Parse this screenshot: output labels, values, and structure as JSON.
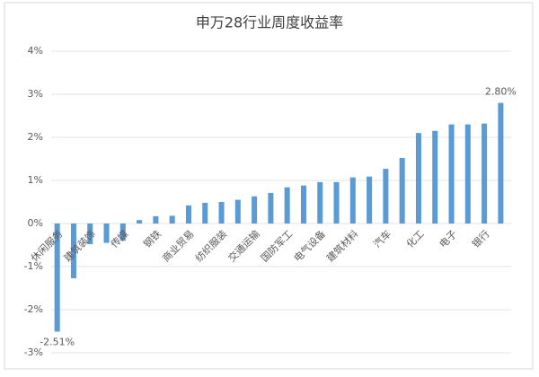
{
  "chart_data": {
    "type": "bar",
    "title": "申万28行业周度收益率",
    "categories": [
      "休闲服务",
      null,
      "建筑装饰",
      null,
      "传媒",
      null,
      "钢铁",
      null,
      "商业贸易",
      null,
      "纺织服装",
      null,
      "交通运输",
      null,
      "国防军工",
      null,
      "电气设备",
      null,
      "建筑材料",
      null,
      "汽车",
      null,
      "化工",
      null,
      "电子",
      null,
      "银行",
      null
    ],
    "values": [
      -2.51,
      -1.27,
      -0.48,
      -0.45,
      -0.4,
      0.08,
      0.17,
      0.18,
      0.42,
      0.48,
      0.5,
      0.55,
      0.63,
      0.71,
      0.84,
      0.88,
      0.96,
      0.96,
      1.07,
      1.09,
      1.27,
      1.52,
      2.1,
      2.15,
      2.3,
      2.3,
      2.32,
      2.8
    ],
    "value_labels": [
      "-2.51%",
      null,
      null,
      null,
      null,
      null,
      null,
      null,
      null,
      null,
      null,
      null,
      null,
      null,
      null,
      null,
      null,
      null,
      null,
      null,
      null,
      null,
      null,
      null,
      null,
      null,
      null,
      "2.80%"
    ],
    "color": "#5b9bd5",
    "ylim": [
      -3,
      4
    ],
    "yticks": [
      {
        "value": -3,
        "label": "-3%"
      },
      {
        "value": -2,
        "label": "-2%"
      },
      {
        "value": -1,
        "label": "-1%"
      },
      {
        "value": 0,
        "label": "0%"
      },
      {
        "value": 1,
        "label": "1%"
      },
      {
        "value": 2,
        "label": "2%"
      },
      {
        "value": 3,
        "label": "3%"
      },
      {
        "value": 4,
        "label": "4%"
      }
    ],
    "grid": true
  }
}
